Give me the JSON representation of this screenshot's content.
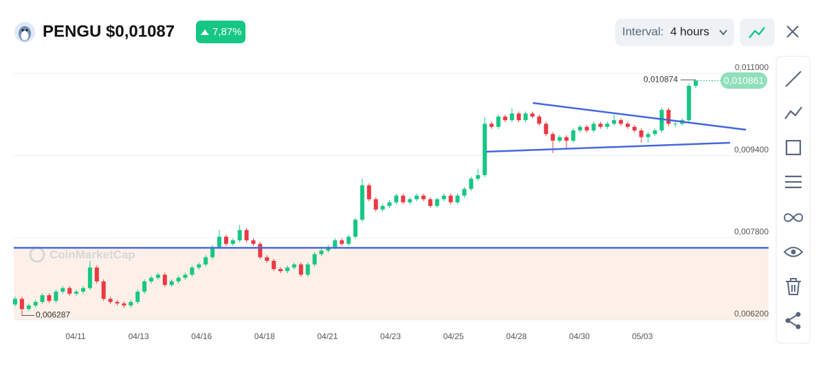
{
  "header": {
    "title": "PENGU $0,01087",
    "change": "7,87%",
    "interval_label": "Interval:",
    "interval_value": "4 hours"
  },
  "chart_data": {
    "type": "candlestick",
    "watermark": "CoinMarketCap",
    "ylim": [
      0.0062,
      0.011
    ],
    "yticks": [
      {
        "value": 0.011,
        "label": "0,011000"
      },
      {
        "value": 0.0094,
        "label": "0,009400"
      },
      {
        "value": 0.0078,
        "label": "0,007800"
      },
      {
        "value": 0.0062,
        "label": "0,006200"
      }
    ],
    "x_tick_labels": [
      "04/11",
      "04/13",
      "04/16",
      "04/18",
      "04/21",
      "04/23",
      "04/25",
      "04/28",
      "04/30",
      "05/03"
    ],
    "grid": true,
    "up_color": "#16c784",
    "down_color": "#ea3943",
    "max_price": {
      "value": 0.010874,
      "label": "0,010874"
    },
    "last_price": {
      "value": 0.010861,
      "label": "0,010861"
    },
    "min_price": {
      "value": 0.006287,
      "label": "0,006287"
    },
    "open": [
      0.0065,
      0.00661,
      0.00641,
      0.00648,
      0.00655,
      0.00668,
      0.00657,
      0.00675,
      0.00682,
      0.00671,
      0.00675,
      0.00682,
      0.00722,
      0.00695,
      0.00661,
      0.00655,
      0.00652,
      0.00648,
      0.00655,
      0.00675,
      0.00695,
      0.00702,
      0.00708,
      0.00688,
      0.00695,
      0.00702,
      0.00708,
      0.00722,
      0.00728,
      0.00742,
      0.00762,
      0.00782,
      0.00768,
      0.00775,
      0.00795,
      0.00775,
      0.00768,
      0.00742,
      0.00735,
      0.00719,
      0.00715,
      0.00722,
      0.00728,
      0.00708,
      0.00728,
      0.00748,
      0.00755,
      0.00762,
      0.00775,
      0.00768,
      0.00782,
      0.00815,
      0.00882,
      0.00855,
      0.00835,
      0.00842,
      0.00849,
      0.00862,
      0.00849,
      0.00855,
      0.00862,
      0.00855,
      0.00842,
      0.00855,
      0.00862,
      0.00849,
      0.00862,
      0.00875,
      0.00895,
      0.00902,
      0.01002,
      0.00996,
      0.01016,
      0.01009,
      0.01022,
      0.01009,
      0.01022,
      0.01016,
      0.01002,
      0.00982,
      0.00969,
      0.00976,
      0.00969,
      0.00989,
      0.00996,
      0.00989,
      0.01002,
      0.00996,
      0.01002,
      0.01009,
      0.01002,
      0.00996,
      0.00989,
      0.00976,
      0.00982,
      0.00989,
      0.01029,
      0.01002,
      0.01002,
      0.01009,
      0.01076
    ],
    "high": [
      0.00665,
      0.00665,
      0.00652,
      0.00659,
      0.00672,
      0.00672,
      0.00679,
      0.00686,
      0.00686,
      0.00679,
      0.00686,
      0.00735,
      0.00726,
      0.00699,
      0.00665,
      0.00659,
      0.00656,
      0.00659,
      0.00679,
      0.00699,
      0.00706,
      0.00712,
      0.00712,
      0.00699,
      0.00706,
      0.00712,
      0.00726,
      0.00732,
      0.00746,
      0.00766,
      0.00795,
      0.00786,
      0.00779,
      0.00805,
      0.00799,
      0.00779,
      0.00772,
      0.00746,
      0.00739,
      0.00723,
      0.00726,
      0.00732,
      0.00732,
      0.00732,
      0.00752,
      0.00759,
      0.00766,
      0.00779,
      0.00779,
      0.00786,
      0.00819,
      0.00895,
      0.00886,
      0.00859,
      0.00846,
      0.00853,
      0.00866,
      0.00866,
      0.00859,
      0.00866,
      0.00866,
      0.00859,
      0.00859,
      0.00866,
      0.00866,
      0.00866,
      0.00879,
      0.00899,
      0.00915,
      0.01015,
      0.01006,
      0.0102,
      0.0102,
      0.01032,
      0.01026,
      0.01026,
      0.01026,
      0.0102,
      0.01006,
      0.00986,
      0.0098,
      0.0098,
      0.00993,
      0.01,
      0.01,
      0.01006,
      0.01006,
      0.01006,
      0.0102,
      0.01013,
      0.01006,
      0.01,
      0.00993,
      0.00986,
      0.00993,
      0.01033,
      0.01033,
      0.01006,
      0.01013,
      0.0108,
      0.010874
    ],
    "low": [
      0.00646,
      0.006287,
      0.00637,
      0.00644,
      0.00651,
      0.00653,
      0.00653,
      0.00671,
      0.00667,
      0.00667,
      0.00671,
      0.00678,
      0.00691,
      0.00657,
      0.00651,
      0.00648,
      0.00644,
      0.00644,
      0.00651,
      0.00671,
      0.00691,
      0.00698,
      0.00684,
      0.00684,
      0.00691,
      0.00698,
      0.00704,
      0.00718,
      0.00724,
      0.00738,
      0.00758,
      0.00764,
      0.00764,
      0.00771,
      0.00771,
      0.00764,
      0.00738,
      0.00731,
      0.00715,
      0.00711,
      0.00711,
      0.00718,
      0.00704,
      0.00704,
      0.00724,
      0.00744,
      0.00751,
      0.00758,
      0.00764,
      0.00764,
      0.00778,
      0.00811,
      0.00851,
      0.00831,
      0.00831,
      0.00838,
      0.00845,
      0.00845,
      0.00845,
      0.00851,
      0.00851,
      0.00838,
      0.00838,
      0.00851,
      0.00845,
      0.00845,
      0.00858,
      0.00871,
      0.00891,
      0.00898,
      0.00992,
      0.00992,
      0.01005,
      0.01005,
      0.01005,
      0.01005,
      0.01012,
      0.00998,
      0.00978,
      0.00945,
      0.00965,
      0.00955,
      0.00965,
      0.00985,
      0.00985,
      0.00985,
      0.00992,
      0.00992,
      0.00998,
      0.00998,
      0.00992,
      0.00985,
      0.00965,
      0.00965,
      0.00978,
      0.00985,
      0.00998,
      0.00995,
      0.00998,
      0.01005,
      0.01072
    ],
    "close": [
      0.00661,
      0.00641,
      0.00648,
      0.00655,
      0.00668,
      0.00657,
      0.00675,
      0.00682,
      0.00671,
      0.00675,
      0.00682,
      0.00722,
      0.00695,
      0.00661,
      0.00655,
      0.00652,
      0.00648,
      0.00655,
      0.00675,
      0.00695,
      0.00702,
      0.00708,
      0.00688,
      0.00695,
      0.00702,
      0.00708,
      0.00722,
      0.00728,
      0.00742,
      0.00762,
      0.00782,
      0.00768,
      0.00775,
      0.00795,
      0.00775,
      0.00768,
      0.00742,
      0.00735,
      0.00719,
      0.00715,
      0.00722,
      0.00728,
      0.00708,
      0.00728,
      0.00748,
      0.00755,
      0.00762,
      0.00775,
      0.00768,
      0.00782,
      0.00815,
      0.00882,
      0.00855,
      0.00835,
      0.00842,
      0.00849,
      0.00862,
      0.00849,
      0.00855,
      0.00862,
      0.00855,
      0.00842,
      0.00855,
      0.00862,
      0.00849,
      0.00862,
      0.00875,
      0.00895,
      0.00902,
      0.01002,
      0.00996,
      0.01016,
      0.01009,
      0.01022,
      0.01009,
      0.01022,
      0.01016,
      0.01002,
      0.00982,
      0.00969,
      0.00976,
      0.00969,
      0.00989,
      0.00996,
      0.00989,
      0.01002,
      0.00996,
      0.01002,
      0.01009,
      0.01002,
      0.00996,
      0.00989,
      0.00976,
      0.00982,
      0.00989,
      0.01029,
      0.01002,
      0.01002,
      0.01009,
      0.01076,
      0.010861
    ]
  }
}
